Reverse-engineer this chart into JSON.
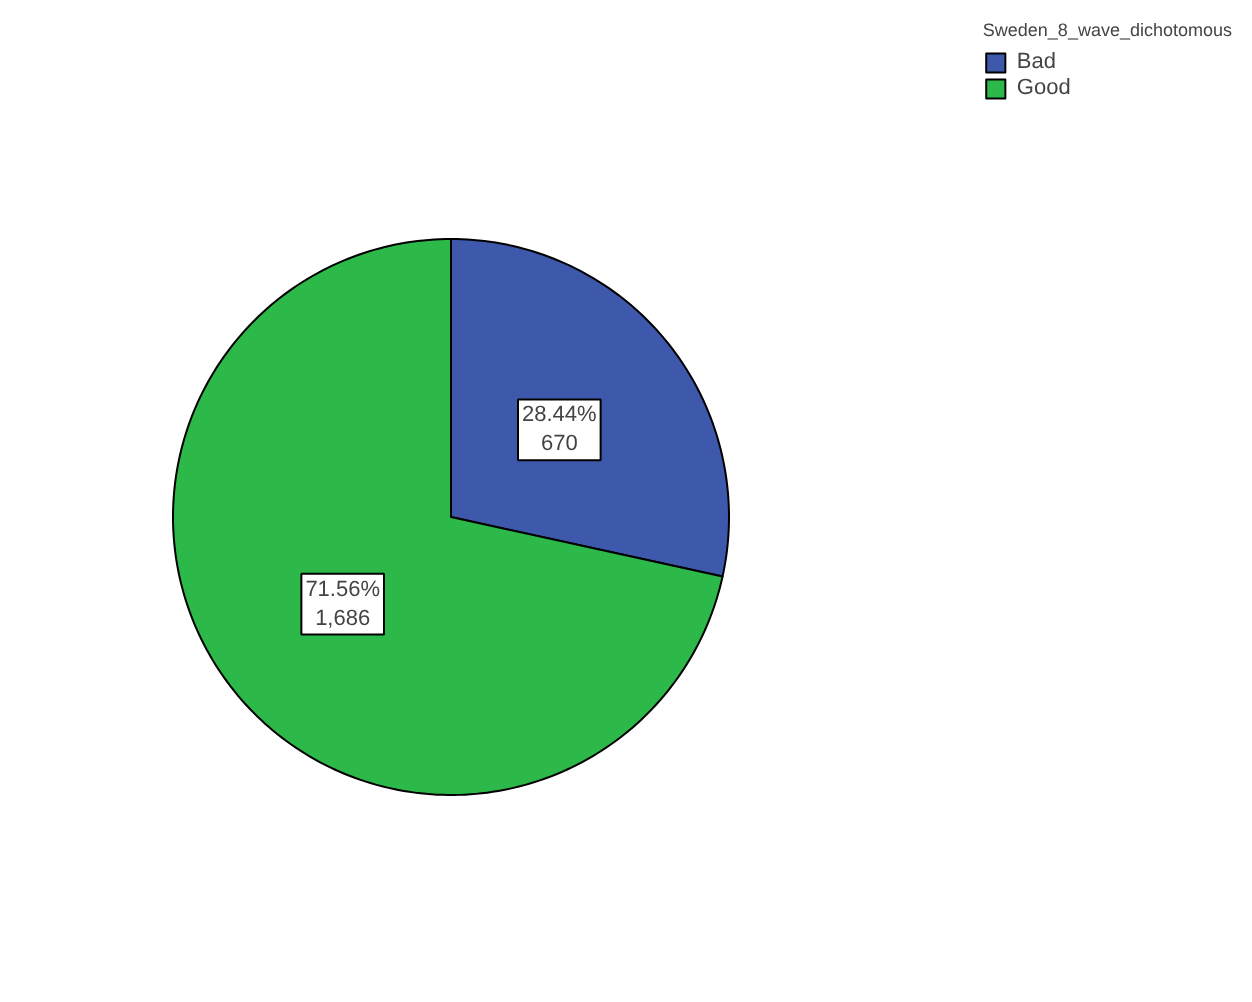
{
  "chart_data": {
    "type": "pie",
    "legend_title": "Sweden_8_wave_dichotomous",
    "legend": "top right",
    "categories": [
      "Bad",
      "Good"
    ],
    "values": [
      670,
      1686
    ],
    "colors": [
      "#3e58ac",
      "#2db84a"
    ],
    "value_labels": [
      "28.44%\n670",
      "71.56%\n1,686"
    ]
  }
}
